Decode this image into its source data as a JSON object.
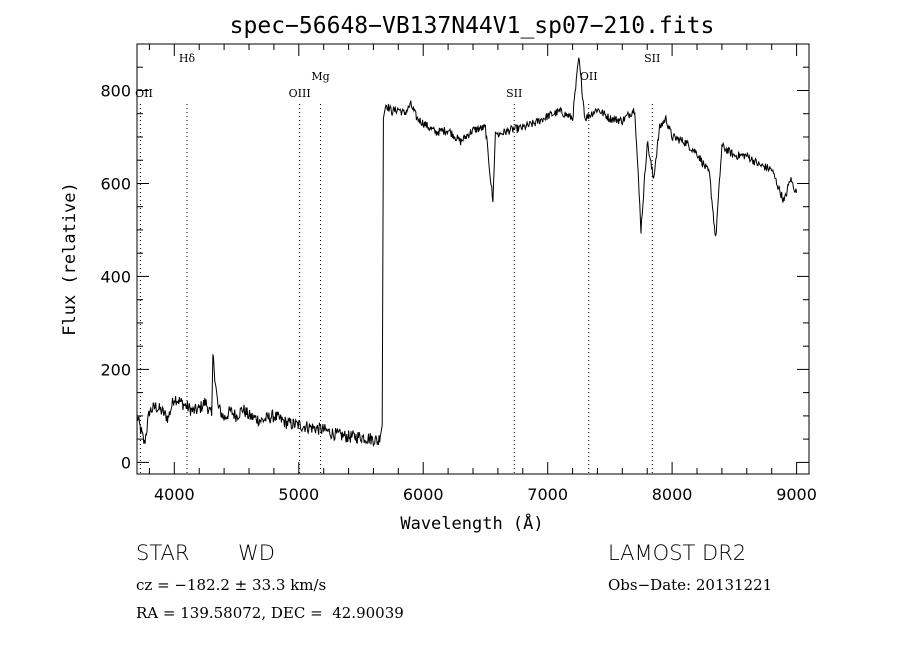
{
  "chart_data": {
    "type": "line",
    "title": "spec−56648−VB137N44V1_sp07−210.fits",
    "xlabel": "Wavelength (Å)",
    "ylabel": "Flux (relative)",
    "xlim": [
      3700,
      9100
    ],
    "ylim": [
      -25,
      900
    ],
    "xticks": [
      4000,
      5000,
      6000,
      7000,
      8000,
      9000
    ],
    "yticks": [
      0,
      200,
      400,
      600,
      800
    ],
    "series": [
      {
        "x": [
          3700,
          3760,
          3800,
          3850,
          3900,
          3950,
          4000,
          4050,
          4100,
          4150,
          4200,
          4250,
          4300,
          4310,
          4350,
          4400,
          4450,
          4500,
          4550,
          4600,
          4700,
          4800,
          4900,
          5000,
          5100,
          5200,
          5300,
          5400,
          5500,
          5600,
          5640,
          5670,
          5680,
          5700,
          5750,
          5800,
          5850,
          5900,
          5950,
          6000,
          6100,
          6200,
          6300,
          6400,
          6500,
          6560,
          6580,
          6600,
          6700,
          6800,
          6900,
          7000,
          7100,
          7200,
          7250,
          7300,
          7400,
          7500,
          7600,
          7700,
          7750,
          7800,
          7850,
          7900,
          7950,
          8000,
          8100,
          8200,
          8300,
          8350,
          8400,
          8500,
          8600,
          8700,
          8800,
          8900,
          8950,
          9000
        ],
        "y": [
          100,
          40,
          110,
          120,
          110,
          95,
          140,
          130,
          120,
          110,
          115,
          130,
          100,
          230,
          120,
          95,
          110,
          100,
          115,
          100,
          90,
          100,
          85,
          80,
          75,
          70,
          60,
          55,
          55,
          50,
          45,
          80,
          740,
          770,
          755,
          760,
          750,
          770,
          740,
          730,
          710,
          715,
          690,
          715,
          720,
          560,
          710,
          705,
          715,
          720,
          730,
          745,
          755,
          740,
          870,
          740,
          760,
          740,
          735,
          760,
          500,
          690,
          610,
          720,
          740,
          700,
          690,
          665,
          620,
          480,
          680,
          660,
          660,
          640,
          630,
          560,
          610,
          580
        ]
      }
    ],
    "lines": [
      {
        "label": "Hδ",
        "x": 4102,
        "label_level": "top"
      },
      {
        "label": "OII",
        "x": 3727,
        "label_level": "mid"
      },
      {
        "label": "OIII",
        "x": 5007,
        "label_level": "mid"
      },
      {
        "label": "Mg",
        "x": 5175,
        "label_level": "high"
      },
      {
        "label": "SII",
        "x": 6731,
        "label_level": "mid"
      },
      {
        "label": "OII",
        "x": 7330,
        "label_level": "high"
      },
      {
        "label": "SII",
        "x": 7840,
        "label_level": "top"
      }
    ]
  },
  "info": {
    "class_label": "STAR",
    "subclass": "WD",
    "survey": "LAMOST DR2",
    "cz": "cz = −182.2 ± 33.3 km/s",
    "obs_date": "Obs−Date: 20131221",
    "coords": "RA = 139.58072, DEC =  42.90039"
  }
}
